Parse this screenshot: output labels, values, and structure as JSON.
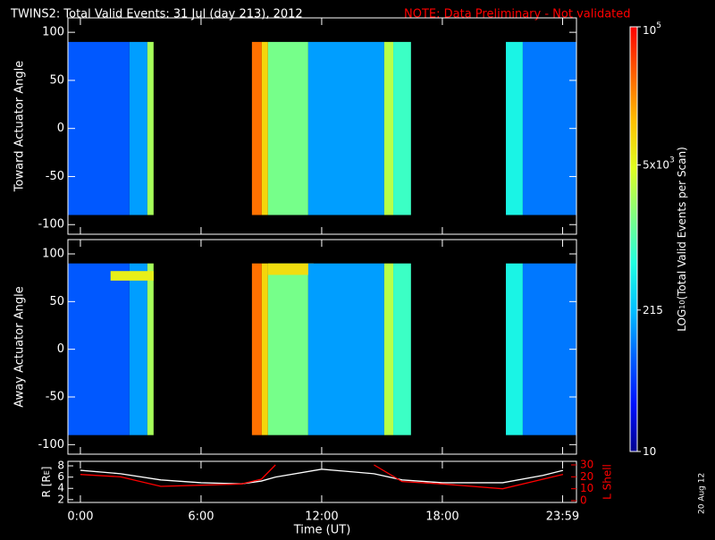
{
  "chart_data": [
    {
      "type": "heatmap",
      "title": "TWINS2: Total Valid Events: 31 Jul (day 213), 2012",
      "note": "NOTE: Data Preliminary - Not validated",
      "ylabel": "Toward Actuator Angle",
      "ylim": [
        -110,
        115
      ],
      "yticks": [
        -100,
        -50,
        0,
        50,
        100
      ],
      "zlabel": [
        "LOG",
        "10",
        "(Total Valid Events per Scan)"
      ],
      "zlim": [
        10,
        100000
      ],
      "zlog": true,
      "zticks": [
        10,
        215,
        {
          "value": 5000,
          "label": "5x10",
          "sup": "3"
        },
        {
          "value": 100000,
          "label": "10",
          "sup": "5"
        }
      ],
      "colormap": [
        "#000090",
        "#0010ff",
        "#0060ff",
        "#00c0ff",
        "#20ffe0",
        "#80ff80",
        "#e0ff20",
        "#ffc000",
        "#ff6000",
        "#ff0000"
      ],
      "segments": [
        {
          "x": [
            -0.62,
            2.44
          ],
          "y": [
            -90,
            90
          ],
          "value": 70
        },
        {
          "x": [
            2.44,
            3.33
          ],
          "y": [
            -90,
            90
          ],
          "value": 150
        },
        {
          "x": [
            3.33,
            3.64
          ],
          "y": [
            -90,
            90
          ],
          "value": 2500
        },
        {
          "x": [
            8.53,
            9.02
          ],
          "y": [
            -90,
            90
          ],
          "value": 30000
        },
        {
          "x": [
            9.02,
            9.33
          ],
          "y": [
            -90,
            90
          ],
          "value": 9000
        },
        {
          "x": [
            9.33,
            11.33
          ],
          "y": [
            -90,
            90
          ],
          "value": 1500
        },
        {
          "x": [
            11.33,
            15.11
          ],
          "y": [
            -90,
            90
          ],
          "value": 150
        },
        {
          "x": [
            15.11,
            15.56
          ],
          "y": [
            -90,
            90
          ],
          "value": 3000
        },
        {
          "x": [
            15.56,
            16.44
          ],
          "y": [
            -90,
            90
          ],
          "value": 800
        },
        {
          "x": [
            21.16,
            22.0
          ],
          "y": [
            -90,
            90
          ],
          "value": 500
        },
        {
          "x": [
            22.0,
            24.67
          ],
          "y": [
            -90,
            90
          ],
          "value": 100
        }
      ]
    },
    {
      "type": "heatmap",
      "ylabel": "Away Actuator Angle",
      "ylim": [
        -110,
        115
      ],
      "yticks": [
        -100,
        -50,
        0,
        50,
        100
      ],
      "segments": [
        {
          "x": [
            -0.62,
            2.44
          ],
          "y": [
            -90,
            90
          ],
          "value": 70
        },
        {
          "x": [
            2.44,
            3.33
          ],
          "y": [
            -90,
            90
          ],
          "value": 150
        },
        {
          "x": [
            3.33,
            3.64
          ],
          "y": [
            -90,
            90
          ],
          "value": 2500
        },
        {
          "x": [
            1.5,
            3.64
          ],
          "y": [
            72,
            82
          ],
          "value": 6000
        },
        {
          "x": [
            8.53,
            9.02
          ],
          "y": [
            -90,
            90
          ],
          "value": 30000
        },
        {
          "x": [
            9.02,
            9.33
          ],
          "y": [
            -90,
            90
          ],
          "value": 9000
        },
        {
          "x": [
            9.33,
            11.33
          ],
          "y": [
            -90,
            90
          ],
          "value": 1500
        },
        {
          "x": [
            9.33,
            11.6
          ],
          "y": [
            78,
            90
          ],
          "value": 8000
        },
        {
          "x": [
            11.33,
            15.11
          ],
          "y": [
            -90,
            90
          ],
          "value": 150
        },
        {
          "x": [
            15.11,
            15.56
          ],
          "y": [
            -90,
            90
          ],
          "value": 3000
        },
        {
          "x": [
            15.56,
            16.44
          ],
          "y": [
            -90,
            90
          ],
          "value": 800
        },
        {
          "x": [
            21.16,
            22.0
          ],
          "y": [
            -90,
            90
          ],
          "value": 500
        },
        {
          "x": [
            22.0,
            24.67
          ],
          "y": [
            -90,
            90
          ],
          "value": 100
        }
      ]
    },
    {
      "type": "line",
      "xlabel": "Time (UT)",
      "ylabel": [
        "R [R",
        "E",
        "]"
      ],
      "y2label": "L Shell",
      "xlim": [
        -0.62,
        24.67
      ],
      "xticks": [
        {
          "value": 0,
          "label": "0:00"
        },
        {
          "value": 6,
          "label": "6:00"
        },
        {
          "value": 12,
          "label": "12:00"
        },
        {
          "value": 18,
          "label": "18:00"
        },
        {
          "value": 23.98,
          "label": "23:59"
        }
      ],
      "ylim": [
        1.5,
        8.8
      ],
      "yticks": [
        2,
        4,
        6,
        8
      ],
      "y2lim": [
        -1.5,
        33
      ],
      "y2ticks": [
        0,
        10,
        20,
        30
      ],
      "x": [
        0,
        2,
        4,
        6,
        8,
        9,
        9.7,
        12,
        14.6,
        16,
        18,
        21,
        23,
        24
      ],
      "series": [
        {
          "name": "R",
          "color": "#ffffff",
          "values": [
            7.2,
            6.6,
            5.5,
            5.0,
            4.8,
            5.3,
            6.0,
            7.4,
            6.6,
            5.5,
            5.0,
            5.0,
            6.3,
            7.2
          ]
        },
        {
          "name": "L Shell",
          "color": "#ff0000",
          "axis": "y2",
          "values": [
            22,
            20,
            12,
            13,
            14,
            18,
            30,
            null,
            30,
            16,
            14,
            10,
            18,
            22
          ]
        }
      ]
    },
    {
      "type": "stamp",
      "text": "20 Aug 12"
    }
  ]
}
